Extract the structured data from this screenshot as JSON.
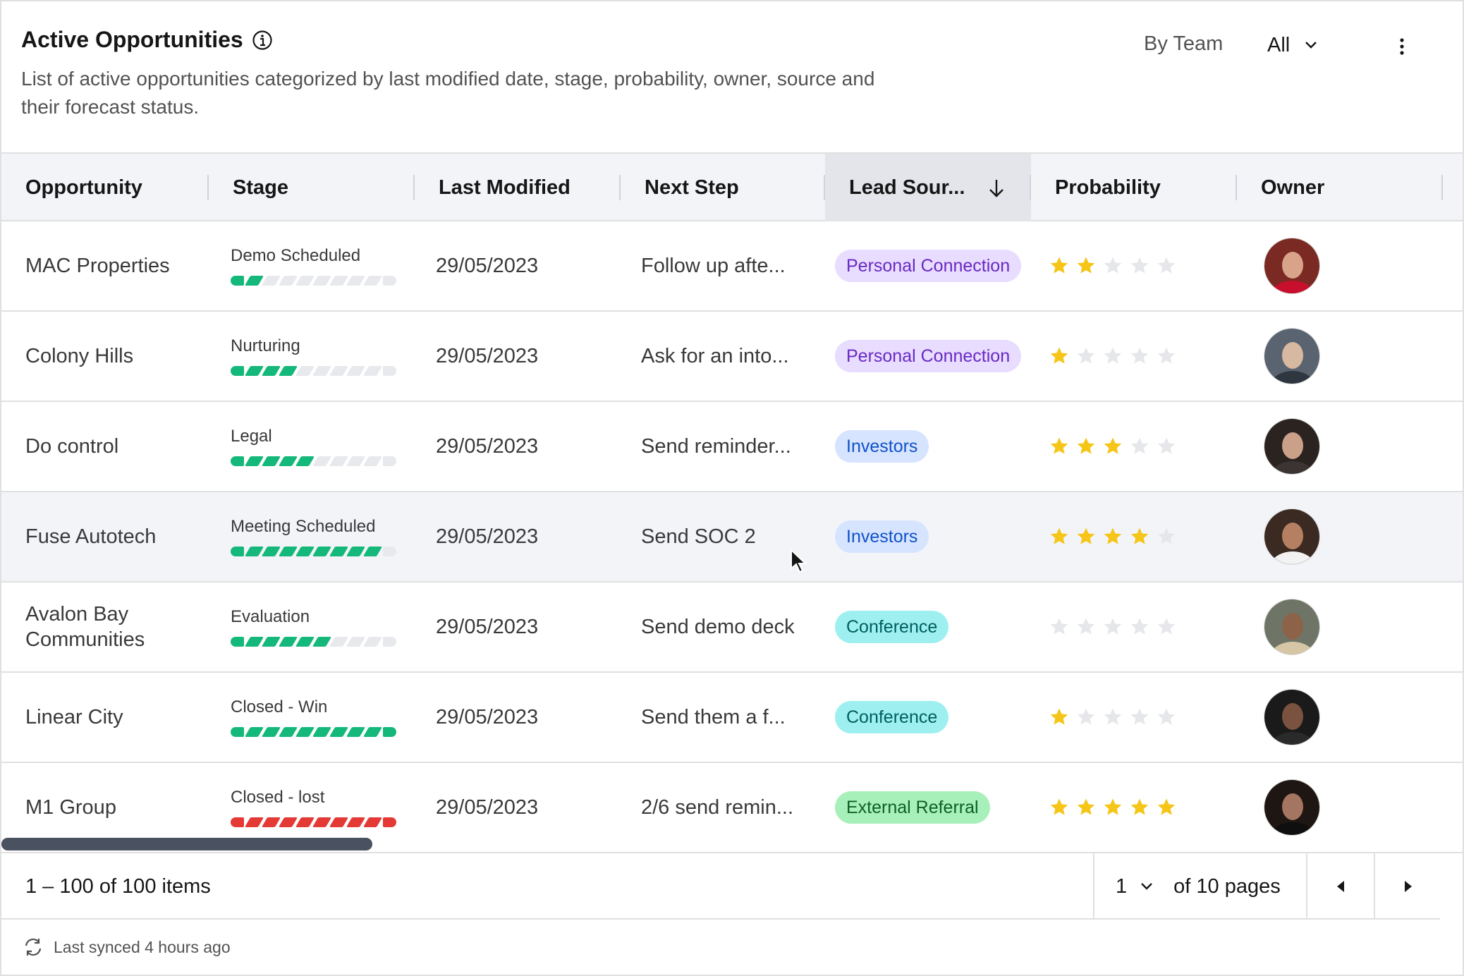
{
  "header": {
    "title": "Active Opportunities",
    "description": "List of active opportunities categorized by last modified date, stage, probability, owner, source and their forecast status.",
    "group_label": "By Team",
    "filter_value": "All"
  },
  "columns": {
    "opportunity": "Opportunity",
    "stage": "Stage",
    "last_modified": "Last Modified",
    "next_step": "Next Step",
    "lead_source": "Lead Sour...",
    "probability": "Probability",
    "owner": "Owner"
  },
  "rows": [
    {
      "opportunity": "MAC Properties",
      "stage": "Demo Scheduled",
      "stage_progress": 2,
      "stage_color": "green",
      "last_modified": "29/05/2023",
      "next_step": "Follow up afte...",
      "lead_source": "Personal Connection",
      "lead_color": "purple",
      "stars": 2
    },
    {
      "opportunity": "Colony Hills",
      "stage": "Nurturing",
      "stage_progress": 4,
      "stage_color": "green",
      "last_modified": "29/05/2023",
      "next_step": "Ask for an into...",
      "lead_source": "Personal Connection",
      "lead_color": "purple",
      "stars": 1
    },
    {
      "opportunity": "Do control",
      "stage": "Legal",
      "stage_progress": 5,
      "stage_color": "green",
      "last_modified": "29/05/2023",
      "next_step": "Send reminder...",
      "lead_source": "Investors",
      "lead_color": "blue",
      "stars": 3
    },
    {
      "opportunity": "Fuse Autotech",
      "stage": "Meeting Scheduled",
      "stage_progress": 9,
      "stage_color": "green",
      "last_modified": "29/05/2023",
      "next_step": "Send SOC 2",
      "lead_source": "Investors",
      "lead_color": "blue",
      "stars": 4
    },
    {
      "opportunity": "Avalon Bay Communities",
      "stage": "Evaluation",
      "stage_progress": 6,
      "stage_color": "green",
      "last_modified": "29/05/2023",
      "next_step": "Send demo deck",
      "lead_source": "Conference",
      "lead_color": "teal",
      "stars": 0
    },
    {
      "opportunity": "Linear City",
      "stage": "Closed - Win",
      "stage_progress": 10,
      "stage_color": "green",
      "last_modified": "29/05/2023",
      "next_step": "Send them a f...",
      "lead_source": "Conference",
      "lead_color": "teal",
      "stars": 1
    },
    {
      "opportunity": "M1 Group",
      "stage": "Closed - lost",
      "stage_progress": 10,
      "stage_color": "red",
      "last_modified": "29/05/2023",
      "next_step": "2/6 send remin...",
      "lead_source": "External Referral",
      "lead_color": "green",
      "stars": 5
    }
  ],
  "stage_segments_total": 10,
  "stars_total": 5,
  "colors": {
    "purple_bg": "#e8dcff",
    "purple_fg": "#6929c4",
    "blue_bg": "#d7e4ff",
    "blue_fg": "#0f52c9",
    "teal_bg": "#9ef0f0",
    "teal_fg": "#005d5d",
    "green_bg": "#a7f0ba",
    "green_fg": "#0e6027",
    "star_on": "#f5c518",
    "star_off": "#e6e7ea"
  },
  "footer": {
    "items_text": "1 – 100 of 100 items",
    "page": "1",
    "of_pages": "of 10 pages",
    "sync_text": "Last synced 4 hours ago"
  }
}
